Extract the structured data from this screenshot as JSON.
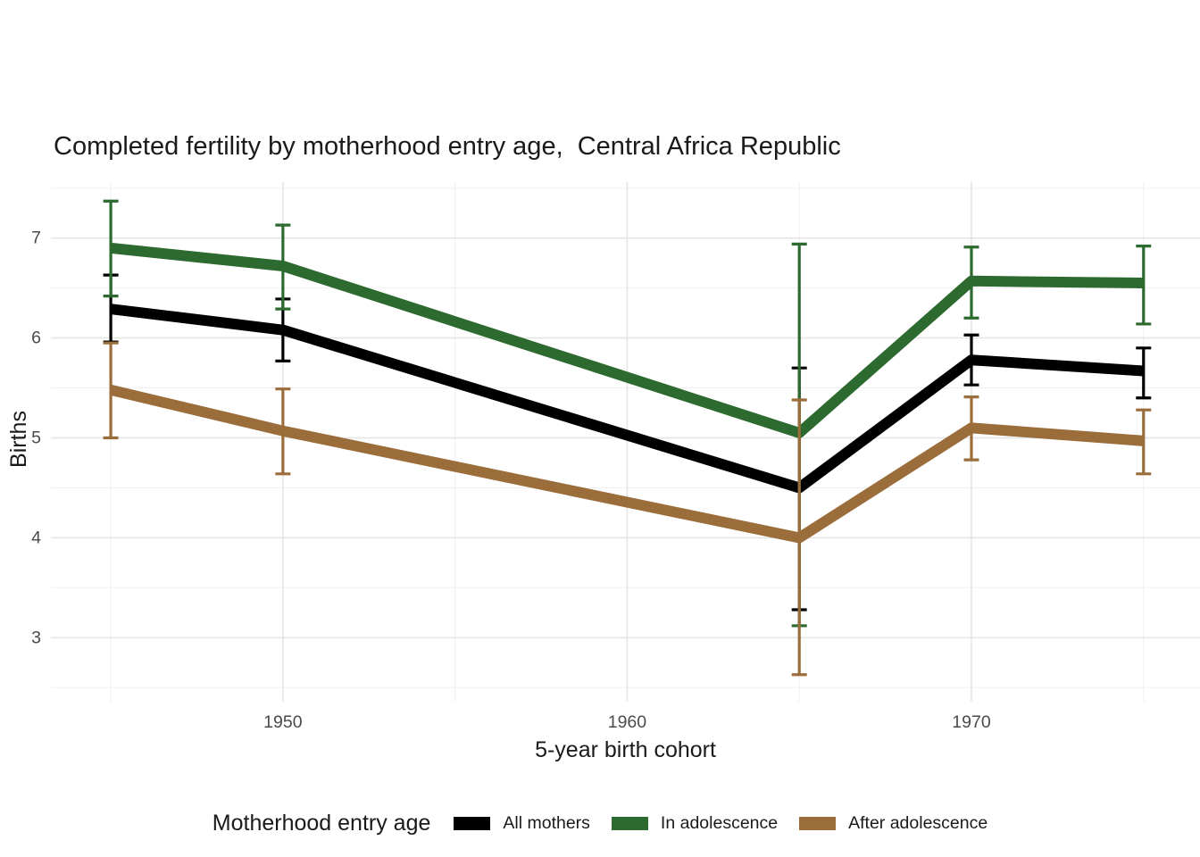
{
  "chart_data": {
    "type": "line",
    "title": "Completed fertility by motherhood entry age,  Central Africa Republic",
    "xlabel": "5-year birth cohort",
    "ylabel": "Births",
    "legend_title": "Motherhood entry age",
    "legend_position": "bottom",
    "grid": true,
    "error_bars": true,
    "x": [
      1945,
      1950,
      1965,
      1970,
      1975
    ],
    "series": [
      {
        "name": "All mothers",
        "color": "#000000",
        "values": [
          6.29,
          6.08,
          4.5,
          5.78,
          5.67
        ],
        "ci_low": [
          5.96,
          5.77,
          3.28,
          5.53,
          5.4
        ],
        "ci_high": [
          6.63,
          6.39,
          5.7,
          6.03,
          5.9
        ]
      },
      {
        "name": "In adolescence",
        "color": "#2d6a2f",
        "values": [
          6.9,
          6.72,
          5.05,
          6.57,
          6.55
        ],
        "ci_low": [
          6.42,
          6.29,
          3.12,
          6.2,
          6.14
        ],
        "ci_high": [
          7.37,
          7.13,
          6.94,
          6.91,
          6.92
        ]
      },
      {
        "name": "After adolescence",
        "color": "#9a6d3b",
        "values": [
          5.48,
          5.07,
          4.0,
          5.1,
          4.97
        ],
        "ci_low": [
          5.0,
          4.64,
          2.63,
          4.78,
          4.64
        ],
        "ci_high": [
          5.95,
          5.49,
          5.38,
          5.41,
          5.28
        ]
      }
    ],
    "x_ticks": {
      "major_values": [
        1950,
        1960,
        1970
      ],
      "major_labels": [
        "1950",
        "1960",
        "1970"
      ],
      "minor_values": [
        1945,
        1955,
        1965,
        1975
      ]
    },
    "y_ticks": {
      "major_values": [
        3,
        4,
        5,
        6,
        7
      ],
      "major_labels": [
        "3",
        "4",
        "5",
        "6",
        "7"
      ],
      "minor_values": [
        2.5,
        3.5,
        4.5,
        5.5,
        6.5,
        7.5
      ]
    },
    "x_domain": [
      1943.26,
      1976.64
    ],
    "y_domain": [
      2.36,
      7.56
    ]
  }
}
